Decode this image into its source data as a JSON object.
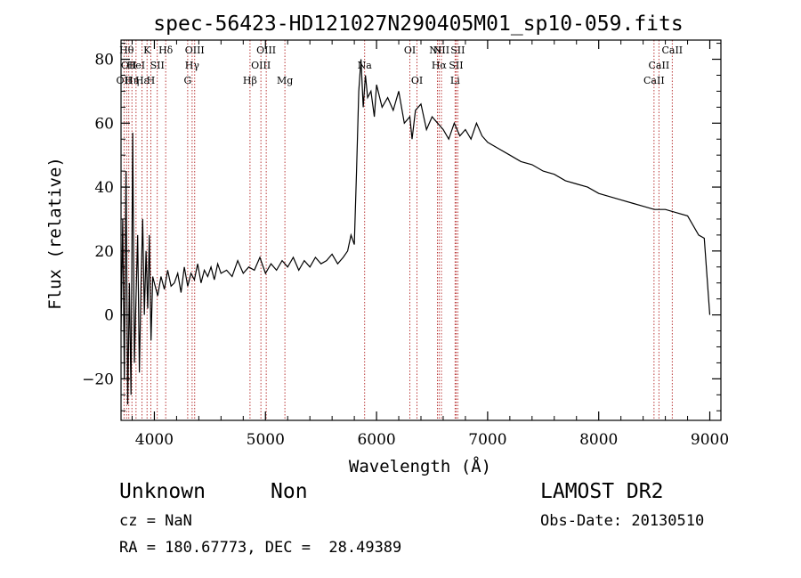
{
  "chart_data": {
    "type": "line",
    "title": "spec-56423-HD121027N290405M01_sp10-059.fits",
    "xlabel": "Wavelength (Å)",
    "ylabel": "Flux (relative)",
    "xlim": [
      3700,
      9100
    ],
    "ylim": [
      -33,
      86
    ],
    "x_ticks": [
      4000,
      5000,
      6000,
      7000,
      8000,
      9000
    ],
    "y_ticks": [
      -20,
      0,
      20,
      40,
      60,
      80
    ],
    "grid": false,
    "line_color": "#000000",
    "marker_color": "#b22222",
    "series": [
      {
        "x": [
          3700,
          3715,
          3730,
          3745,
          3760,
          3775,
          3790,
          3805,
          3820,
          3835,
          3850,
          3865,
          3880,
          3895,
          3910,
          3925,
          3940,
          3955,
          3970,
          3985,
          4000,
          4030,
          4060,
          4090,
          4120,
          4150,
          4180,
          4210,
          4240,
          4270,
          4300,
          4330,
          4360,
          4390,
          4420,
          4450,
          4480,
          4510,
          4540,
          4570,
          4600,
          4650,
          4700,
          4750,
          4800,
          4850,
          4900,
          4950,
          5000,
          5050,
          5100,
          5150,
          5200,
          5250,
          5300,
          5350,
          5400,
          5450,
          5500,
          5550,
          5600,
          5650,
          5700,
          5740,
          5770,
          5800,
          5820,
          5840,
          5860,
          5880,
          5900,
          5920,
          5950,
          5980,
          6000,
          6050,
          6100,
          6150,
          6200,
          6250,
          6300,
          6320,
          6350,
          6400,
          6450,
          6500,
          6550,
          6600,
          6650,
          6700,
          6750,
          6800,
          6850,
          6900,
          6950,
          7000,
          7100,
          7200,
          7300,
          7400,
          7500,
          7600,
          7700,
          7800,
          7900,
          8000,
          8100,
          8200,
          8300,
          8400,
          8500,
          8600,
          8700,
          8800,
          8900,
          8950,
          9000
        ],
        "y": [
          -5,
          30,
          -20,
          45,
          -28,
          10,
          -25,
          57,
          -15,
          5,
          25,
          -18,
          10,
          30,
          0,
          20,
          2,
          25,
          -8,
          12,
          10,
          6,
          12,
          8,
          14,
          9,
          10,
          13,
          7,
          15,
          9,
          13,
          11,
          16,
          10,
          14,
          12,
          15,
          11,
          16,
          13,
          14,
          12,
          17,
          13,
          15,
          14,
          18,
          13,
          16,
          14,
          17,
          15,
          18,
          14,
          17,
          15,
          18,
          16,
          17,
          19,
          16,
          18,
          20,
          25,
          22,
          45,
          70,
          80,
          65,
          75,
          68,
          70,
          62,
          72,
          65,
          68,
          64,
          70,
          60,
          62,
          55,
          64,
          66,
          58,
          62,
          60,
          58,
          55,
          60,
          56,
          58,
          55,
          60,
          56,
          54,
          52,
          50,
          48,
          47,
          45,
          44,
          42,
          41,
          40,
          38,
          37,
          36,
          35,
          34,
          33,
          33,
          32,
          31,
          25,
          24,
          0
        ]
      }
    ],
    "line_markers": [
      {
        "wavelength": 3727,
        "label": "OII",
        "row": 2
      },
      {
        "wavelength": 3750,
        "label": "Hθ",
        "row": 0
      },
      {
        "wavelength": 3770,
        "label": "OII",
        "row": 1
      },
      {
        "wavelength": 3798,
        "label": "Hη",
        "row": 2
      },
      {
        "wavelength": 3835,
        "label": "HeI",
        "row": 1
      },
      {
        "wavelength": 3889,
        "label": "Hε",
        "row": 2
      },
      {
        "wavelength": 3934,
        "label": "K",
        "row": 0
      },
      {
        "wavelength": 3968,
        "label": "H",
        "row": 2
      },
      {
        "wavelength": 4026,
        "label": "SII",
        "row": 1
      },
      {
        "wavelength": 4102,
        "label": "Hδ",
        "row": 0
      },
      {
        "wavelength": 4300,
        "label": "G",
        "row": 2
      },
      {
        "wavelength": 4340,
        "label": "Hγ",
        "row": 1
      },
      {
        "wavelength": 4363,
        "label": "OIII",
        "row": 0
      },
      {
        "wavelength": 4861,
        "label": "Hβ",
        "row": 2
      },
      {
        "wavelength": 4959,
        "label": "OIII",
        "row": 1
      },
      {
        "wavelength": 5007,
        "label": "OIII",
        "row": 0
      },
      {
        "wavelength": 5175,
        "label": "Mg",
        "row": 2
      },
      {
        "wavelength": 5893,
        "label": "Na",
        "row": 1
      },
      {
        "wavelength": 6300,
        "label": "OI",
        "row": 0
      },
      {
        "wavelength": 6364,
        "label": "OI",
        "row": 2
      },
      {
        "wavelength": 6548,
        "label": "NII",
        "row": 0
      },
      {
        "wavelength": 6563,
        "label": "Hα",
        "row": 1
      },
      {
        "wavelength": 6584,
        "label": "NII",
        "row": 0
      },
      {
        "wavelength": 6707,
        "label": "Li",
        "row": 2
      },
      {
        "wavelength": 6716,
        "label": "SII",
        "row": 1
      },
      {
        "wavelength": 6731,
        "label": "SII",
        "row": 0
      },
      {
        "wavelength": 8498,
        "label": "CaII",
        "row": 2
      },
      {
        "wavelength": 8542,
        "label": "CaII",
        "row": 1
      },
      {
        "wavelength": 8662,
        "label": "CaII",
        "row": 0
      }
    ]
  },
  "footer": {
    "object_class": "Unknown",
    "object_subclass": "Non",
    "survey": "LAMOST DR2",
    "redshift": "cz = NaN",
    "obs_date": "Obs-Date: 20130510",
    "coords": "RA = 180.67773, DEC =  28.49389"
  }
}
